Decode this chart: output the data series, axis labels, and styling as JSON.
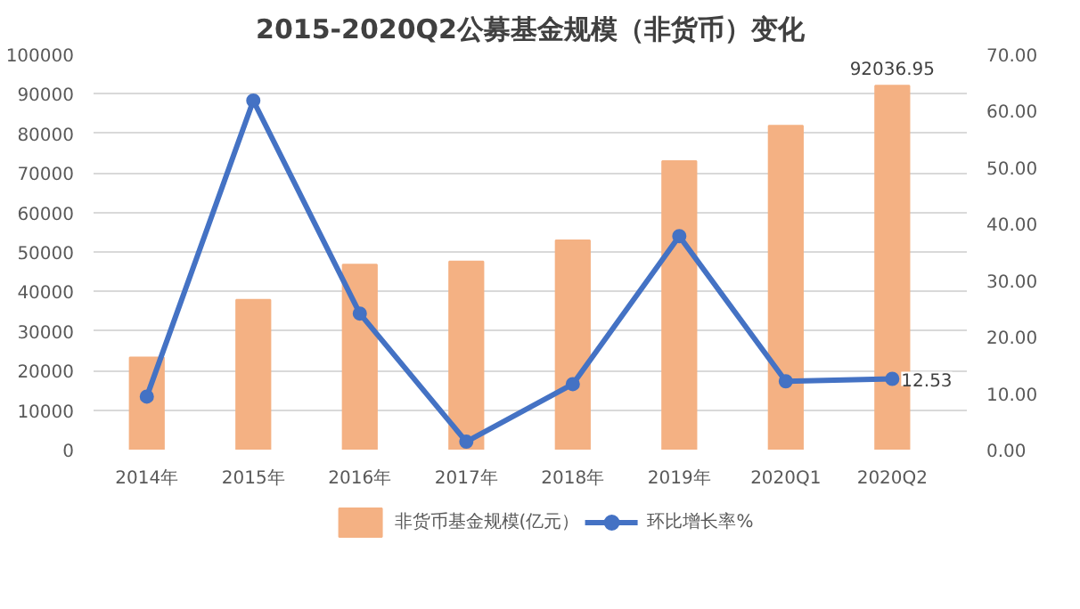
{
  "chart_data": {
    "type": "bar",
    "title": "2015-2020Q2公募基金规模（非货币）变化",
    "categories": [
      "2014年",
      "2015年",
      "2016年",
      "2017年",
      "2018年",
      "2019年",
      "2020Q1",
      "2020Q2"
    ],
    "series": [
      {
        "name": "非货币基金规模(亿元）",
        "color": "#f4b183",
        "values": [
          23300,
          37900,
          46800,
          47600,
          52900,
          73000,
          81900,
          92036.95
        ],
        "value_labels": [
          null,
          null,
          null,
          null,
          null,
          null,
          null,
          "92036.95"
        ]
      },
      {
        "name": "环比增长率%",
        "type": "line",
        "axis": "y2",
        "color": "#4472c4",
        "marker": "circle",
        "values": [
          9.4,
          61.8,
          24.1,
          1.4,
          11.6,
          37.8,
          12.1,
          12.53
        ],
        "value_labels": [
          null,
          null,
          null,
          null,
          null,
          null,
          null,
          "12.53"
        ]
      }
    ],
    "ylim": [
      0,
      100000
    ],
    "yticks": [
      0,
      10000,
      20000,
      30000,
      40000,
      50000,
      60000,
      70000,
      80000,
      90000,
      100000
    ],
    "y2lim": [
      0,
      70
    ],
    "y2ticks": [
      {
        "value": 0,
        "label": "0.00"
      },
      {
        "value": 10,
        "label": "10.00"
      },
      {
        "value": 20,
        "label": "20.00"
      },
      {
        "value": 30,
        "label": "30.00"
      },
      {
        "value": 40,
        "label": "40.00"
      },
      {
        "value": 50,
        "label": "50.00"
      },
      {
        "value": 60,
        "label": "60.00"
      },
      {
        "value": 70,
        "label": "70.00"
      }
    ],
    "grid": "y",
    "legend": "bottom"
  }
}
